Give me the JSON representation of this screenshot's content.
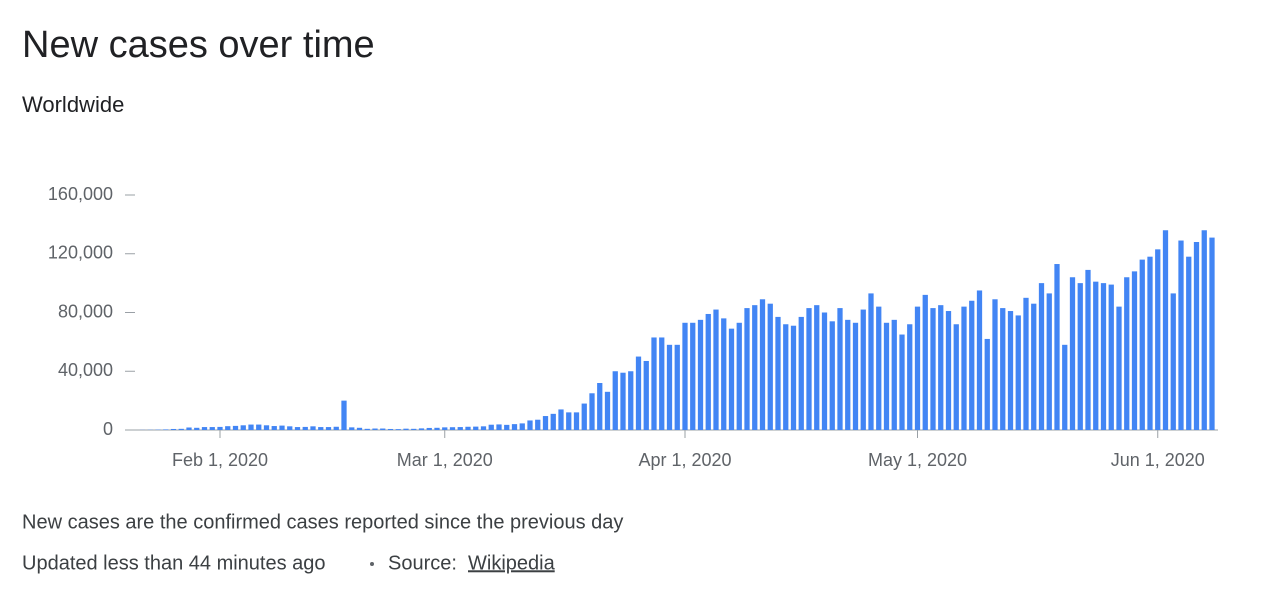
{
  "chart_data": {
    "type": "bar",
    "title": "New cases over time",
    "subtitle": "Worldwide",
    "x": [
      "2020-01-22",
      "2020-01-23",
      "2020-01-24",
      "2020-01-25",
      "2020-01-26",
      "2020-01-27",
      "2020-01-28",
      "2020-01-29",
      "2020-01-30",
      "2020-01-31",
      "2020-02-01",
      "2020-02-02",
      "2020-02-03",
      "2020-02-04",
      "2020-02-05",
      "2020-02-06",
      "2020-02-07",
      "2020-02-08",
      "2020-02-09",
      "2020-02-10",
      "2020-02-11",
      "2020-02-12",
      "2020-02-13",
      "2020-02-14",
      "2020-02-15",
      "2020-02-16",
      "2020-02-17",
      "2020-02-18",
      "2020-02-19",
      "2020-02-20",
      "2020-02-21",
      "2020-02-22",
      "2020-02-23",
      "2020-02-24",
      "2020-02-25",
      "2020-02-26",
      "2020-02-27",
      "2020-02-28",
      "2020-02-29",
      "2020-03-01",
      "2020-03-02",
      "2020-03-03",
      "2020-03-04",
      "2020-03-05",
      "2020-03-06",
      "2020-03-07",
      "2020-03-08",
      "2020-03-09",
      "2020-03-10",
      "2020-03-11",
      "2020-03-12",
      "2020-03-13",
      "2020-03-14",
      "2020-03-15",
      "2020-03-16",
      "2020-03-17",
      "2020-03-18",
      "2020-03-19",
      "2020-03-20",
      "2020-03-21",
      "2020-03-22",
      "2020-03-23",
      "2020-03-24",
      "2020-03-25",
      "2020-03-26",
      "2020-03-27",
      "2020-03-28",
      "2020-03-29",
      "2020-03-30",
      "2020-03-31",
      "2020-04-01",
      "2020-04-02",
      "2020-04-03",
      "2020-04-04",
      "2020-04-05",
      "2020-04-06",
      "2020-04-07",
      "2020-04-08",
      "2020-04-09",
      "2020-04-10",
      "2020-04-11",
      "2020-04-12",
      "2020-04-13",
      "2020-04-14",
      "2020-04-15",
      "2020-04-16",
      "2020-04-17",
      "2020-04-18",
      "2020-04-19",
      "2020-04-20",
      "2020-04-21",
      "2020-04-22",
      "2020-04-23",
      "2020-04-24",
      "2020-04-25",
      "2020-04-26",
      "2020-04-27",
      "2020-04-28",
      "2020-04-29",
      "2020-04-30",
      "2020-05-01",
      "2020-05-02",
      "2020-05-03",
      "2020-05-04",
      "2020-05-05",
      "2020-05-06",
      "2020-05-07",
      "2020-05-08",
      "2020-05-09",
      "2020-05-10",
      "2020-05-11",
      "2020-05-12",
      "2020-05-13",
      "2020-05-14",
      "2020-05-15",
      "2020-05-16",
      "2020-05-17",
      "2020-05-18",
      "2020-05-19",
      "2020-05-20",
      "2020-05-21",
      "2020-05-22",
      "2020-05-23",
      "2020-05-24",
      "2020-05-25",
      "2020-05-26",
      "2020-05-27",
      "2020-05-28",
      "2020-05-29",
      "2020-05-30",
      "2020-05-31",
      "2020-06-01",
      "2020-06-02",
      "2020-06-03",
      "2020-06-04",
      "2020-06-05",
      "2020-06-06",
      "2020-06-07",
      "2020-06-08"
    ],
    "values": [
      100,
      150,
      250,
      400,
      700,
      800,
      1700,
      1500,
      2000,
      2000,
      2100,
      2600,
      2800,
      3200,
      3700,
      3700,
      3200,
      2700,
      3000,
      2500,
      2000,
      2100,
      2500,
      2000,
      2000,
      2200,
      20000,
      1800,
      1500,
      800,
      1000,
      1000,
      700,
      600,
      900,
      800,
      1100,
      1400,
      1500,
      1800,
      1900,
      2000,
      2200,
      2300,
      2500,
      3600,
      3800,
      3500,
      4000,
      4500,
      6500,
      7000,
      9500,
      11000,
      14000,
      12000,
      12000,
      18000,
      25000,
      32000,
      26000,
      40000,
      39000,
      40000,
      50000,
      47000,
      63000,
      63000,
      58000,
      58000,
      73000,
      73000,
      75000,
      79000,
      82000,
      76000,
      69000,
      73000,
      83000,
      85000,
      89000,
      86000,
      77000,
      72000,
      71000,
      77000,
      83000,
      85000,
      80000,
      74000,
      83000,
      75000,
      73000,
      82000,
      93000,
      84000,
      73000,
      75000,
      65000,
      72000,
      84000,
      92000,
      83000,
      85000,
      81000,
      72000,
      84000,
      88000,
      95000,
      62000,
      89000,
      83000,
      81000,
      78000,
      90000,
      86000,
      100000,
      93000,
      113000,
      58000,
      104000,
      100000,
      109000,
      101000,
      100000,
      99000,
      84000,
      104000,
      108000,
      116000,
      118000,
      123000,
      136000,
      93000,
      129000,
      118000,
      128000,
      136000,
      131000
    ],
    "color": "#4285f4",
    "xlim": [
      "2020-01-22",
      "2020-06-08"
    ],
    "xticks": [
      {
        "value": "2020-02-01",
        "label": "Feb 1, 2020"
      },
      {
        "value": "2020-03-01",
        "label": "Mar 1, 2020"
      },
      {
        "value": "2020-04-01",
        "label": "Apr 1, 2020"
      },
      {
        "value": "2020-05-01",
        "label": "May 1, 2020"
      },
      {
        "value": "2020-06-01",
        "label": "Jun 1, 2020"
      }
    ],
    "ylim": [
      0,
      160000
    ],
    "yticks": [
      0,
      {
        "value": 40000,
        "label": "40,000"
      },
      {
        "value": 80000,
        "label": "80,000"
      },
      {
        "value": 120000,
        "label": "120,000"
      },
      {
        "value": 160000,
        "label": "160,000"
      }
    ],
    "note": "New cases are the confirmed cases reported since the previous day",
    "updated": "Updated less than 44 minutes ago",
    "source_label": "Source:",
    "source": "Wikipedia"
  }
}
